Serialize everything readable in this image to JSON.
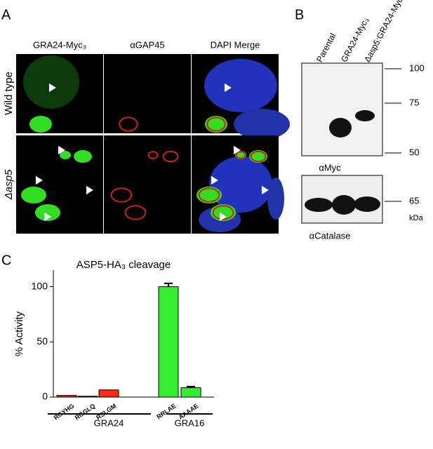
{
  "panel_a": {
    "label": "A",
    "columns": [
      "GRA24-Myc₃",
      "αGAP45",
      "DAPI Merge"
    ],
    "rows": [
      "Wild type",
      "Δasp5"
    ]
  },
  "panel_b": {
    "label": "B",
    "lanes": [
      "Parental",
      "GRA24-Myc₃",
      "Δasp5:GRA24-Myc₃"
    ],
    "top_markers": [
      "100",
      "75",
      "50"
    ],
    "top_antibody": "αMyc",
    "bottom_marker": "65",
    "unit": "kDa",
    "bottom_antibody": "αCatalase"
  },
  "panel_c": {
    "label": "C",
    "groups": [
      "GRA24",
      "GRA16"
    ]
  },
  "chart_data": {
    "type": "bar",
    "title": "ASP5-HA₃ cleavage",
    "y_label": "% Activity",
    "categories": [
      "RGYHG",
      "RGGLQ",
      "RSLGM",
      "RRLAE",
      "AAAAE"
    ],
    "values": [
      1.5,
      0.8,
      6.5,
      100,
      8.5
    ],
    "errors": [
      0,
      0,
      0,
      3,
      1
    ],
    "colors": [
      "#d9341f",
      "#d9341f",
      "#ff2a10",
      "#33ee33",
      "#33ee33"
    ],
    "ylim": [
      0,
      115
    ],
    "yticks": [
      0,
      50,
      100
    ]
  }
}
